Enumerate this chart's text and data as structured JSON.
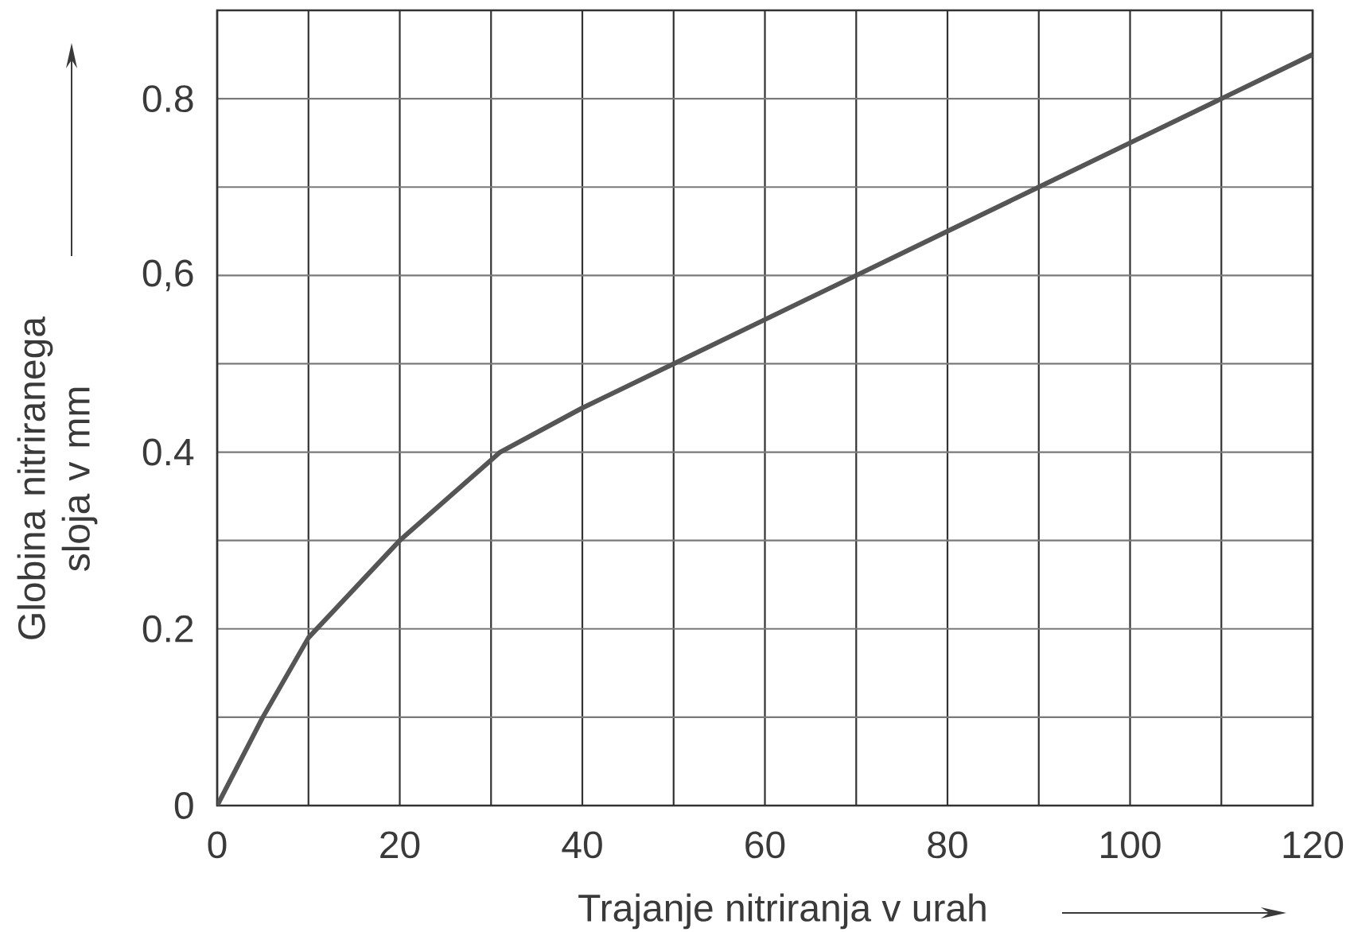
{
  "chart_data": {
    "type": "line",
    "xlabel": "Trajanje nitriranja v urah",
    "ylabel": "Globina nitriranega sloja v mm",
    "x": [
      0,
      5,
      10,
      20,
      31,
      40,
      50,
      60,
      70,
      80,
      90,
      100,
      110,
      120
    ],
    "values": [
      0,
      0.1,
      0.19,
      0.3,
      0.4,
      0.45,
      0.5,
      0.55,
      0.6,
      0.65,
      0.7,
      0.75,
      0.8,
      0.85
    ],
    "color": "#555555",
    "xlim": [
      0,
      120
    ],
    "ylim": [
      0,
      0.9
    ],
    "xticks": [
      0,
      {
        "value": 10,
        "label": null
      },
      20,
      {
        "value": 30,
        "label": null
      },
      40,
      {
        "value": 50,
        "label": null
      },
      60,
      {
        "value": 70,
        "label": null
      },
      80,
      {
        "value": 90,
        "label": null
      },
      100,
      {
        "value": 110,
        "label": null
      },
      120
    ],
    "yticks": [
      0,
      {
        "value": 0.1,
        "label": null
      },
      0.2,
      {
        "value": 0.3,
        "label": null
      },
      0.4,
      {
        "value": 0.5,
        "label": null
      },
      {
        "value": 0.6,
        "label": "0,6"
      },
      {
        "value": 0.7,
        "label": null
      },
      0.8
    ],
    "grid": true
  }
}
